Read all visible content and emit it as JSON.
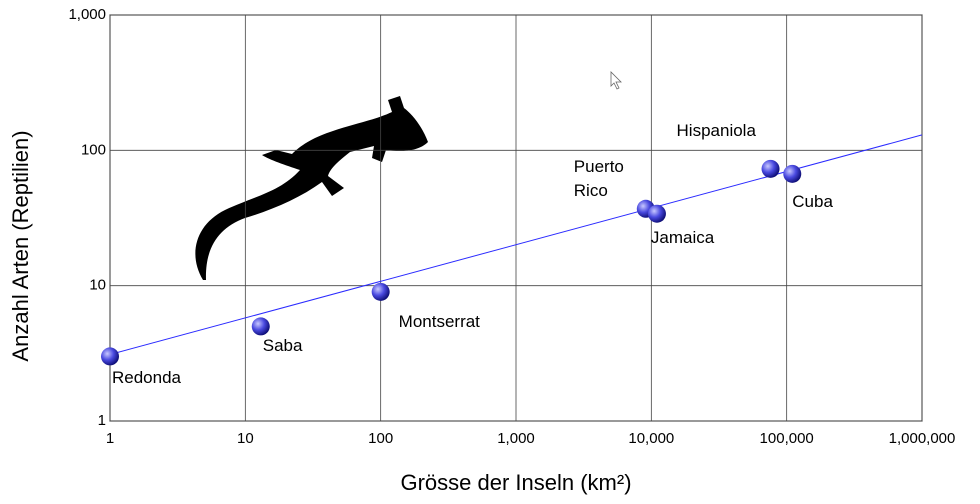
{
  "chart_data": {
    "type": "scatter",
    "x_label": "Grösse der Inseln (km²)",
    "y_label": "Anzahl Arten (Reptilien)",
    "x": [
      1,
      13,
      100,
      9100,
      11000,
      76000,
      110000
    ],
    "values": [
      3,
      5,
      9,
      37,
      34,
      73,
      67
    ],
    "point_labels": [
      "Redonda",
      "Saba",
      "Montserrat",
      "Puerto Rico",
      "Jamaica",
      "Hispaniola",
      "Cuba"
    ],
    "color": "#3a3ad8",
    "fit": {
      "x": [
        1,
        1000000
      ],
      "values": [
        3.1,
        130
      ],
      "color": "#2b2bff"
    },
    "log_x": true,
    "log_y": true,
    "grid": true,
    "xlim": [
      1,
      1000000
    ],
    "ylim": [
      1,
      1000
    ],
    "xticks": [
      1,
      10,
      100,
      {
        "value": 1000,
        "label": "1,000"
      },
      {
        "value": 10000,
        "label": "10,000"
      },
      {
        "value": 100000,
        "label": "100,000"
      },
      {
        "value": 1000000,
        "label": "1,000,000"
      }
    ],
    "yticks": [
      1,
      10,
      100,
      {
        "value": 1000,
        "label": "1,000"
      }
    ]
  }
}
